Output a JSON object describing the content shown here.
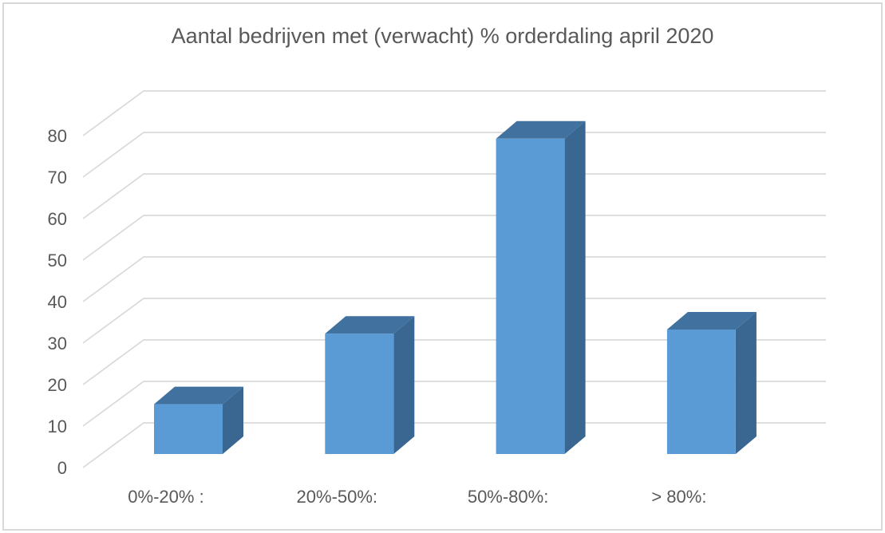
{
  "frame": {
    "background": "#ffffff",
    "border_color": "#d9d9d9"
  },
  "chart_data": {
    "type": "bar",
    "style": "3d",
    "title": "Aantal bedrijven met (verwacht) % orderdaling april 2020",
    "categories": [
      "0%-20% :",
      "20%-50%:",
      "50%-80%:",
      "> 80%:"
    ],
    "values": [
      12,
      29,
      76,
      30
    ],
    "xlabel": "",
    "ylabel": "",
    "ylim": [
      0,
      80
    ],
    "ytick_step": 10,
    "yticks": [
      0,
      10,
      20,
      30,
      40,
      50,
      60,
      70,
      80
    ],
    "grid": true,
    "legend": false,
    "colors": {
      "bar_front": "#5b9bd5",
      "bar_top": "#40719f",
      "bar_side": "#3a6791",
      "gridline": "#d9d9d9",
      "text": "#595959"
    }
  }
}
